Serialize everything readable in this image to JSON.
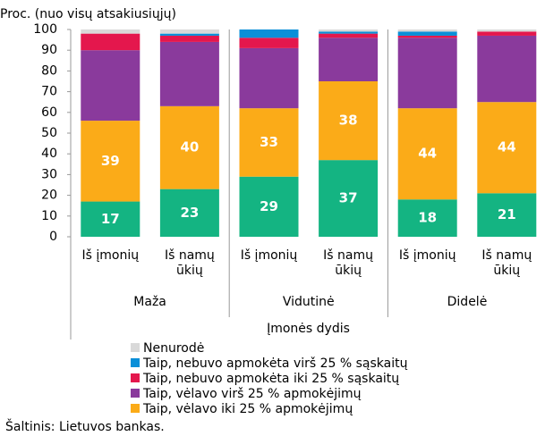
{
  "chart_data": {
    "type": "stacked_bar",
    "y_label": "Proc. (nuo visų atsakiusiųjų)",
    "x_label": "Įmonės dydis",
    "source": "Šaltinis: Lietuvos bankas.",
    "groups": [
      "Maža",
      "Vidutinė",
      "Didelė"
    ],
    "categories": [
      "Iš įmonių",
      "Iš namų ūkių",
      "Iš įmonių",
      "Iš namų ūkių",
      "Iš įmonių",
      "Iš namų ūkių"
    ],
    "series": [
      {
        "color": "#14b482",
        "values": [
          17,
          23,
          29,
          37,
          18,
          21
        ]
      },
      {
        "name": "Taip, vėlavo iki 25 % apmokėjimų",
        "color": "#fbab18",
        "values": [
          39,
          40,
          33,
          38,
          44,
          44
        ]
      },
      {
        "name": "Taip, vėlavo virš 25 % apmokėjimų",
        "color": "#8a3a9c",
        "values": [
          34,
          31,
          29,
          21,
          34,
          32
        ]
      },
      {
        "name": "Taip, nebuvo apmokėta iki 25 % sąskaitų",
        "color": "#e4174d",
        "values": [
          8,
          3,
          5,
          2,
          1,
          2
        ]
      },
      {
        "name": "Taip, nebuvo apmokėta virš 25 % sąskaitų",
        "color": "#0a8fd8",
        "values": [
          0,
          1,
          4,
          1,
          2,
          0
        ]
      },
      {
        "name": "Nenurodė",
        "color": "#d9d9d9",
        "values": [
          2,
          2,
          0,
          1,
          1,
          1
        ]
      }
    ],
    "labeled_series": [
      0,
      1
    ],
    "ylim": [
      0,
      100
    ],
    "yticks": [
      0,
      10,
      20,
      30,
      40,
      50,
      60,
      70,
      80,
      90,
      100
    ]
  }
}
